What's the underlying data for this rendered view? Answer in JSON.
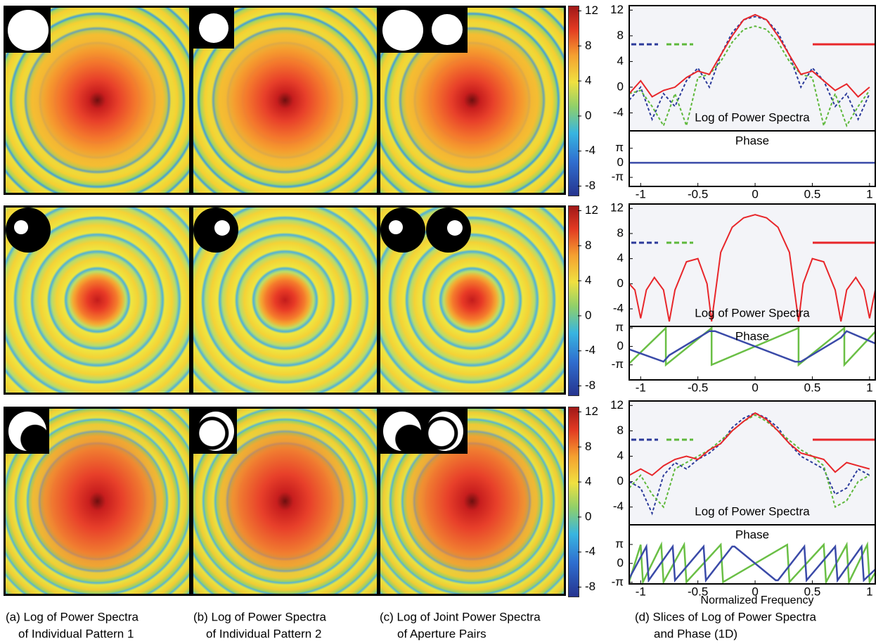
{
  "colorbars": [
    {
      "lim": [
        -9,
        12.6
      ],
      "ticks": [
        12,
        8,
        4,
        0,
        -4,
        -8
      ]
    },
    {
      "lim": [
        -9,
        12.6
      ],
      "ticks": [
        12,
        8,
        4,
        0,
        -4,
        -8
      ]
    },
    {
      "lim": [
        -9,
        12.6
      ],
      "ticks": [
        12,
        8,
        4,
        0,
        -4,
        -8
      ]
    }
  ],
  "slices": [
    {
      "xlim": [
        -1.1,
        1.05
      ],
      "xticks": [
        -1,
        -0.5,
        0,
        0.5,
        1
      ],
      "ylim": [
        -6.8,
        12.7
      ],
      "yticks": [
        12,
        8,
        4,
        0,
        -4
      ],
      "phase_ylim": [
        -5.1,
        6.9
      ],
      "phase_ticks": [
        {
          "value": 3.1416,
          "label": "π"
        },
        0,
        {
          "value": -3.1416,
          "label": "-π"
        }
      ],
      "power_label": "Log of Power Spectra",
      "phase_label": "Phase",
      "power_series": [
        {
          "color": "#2b3a9a",
          "dash": true,
          "x": [
            -1.1,
            -1,
            -0.9,
            -0.8,
            -0.7,
            -0.6,
            -0.5,
            -0.4,
            -0.3,
            -0.2,
            -0.1,
            0,
            0.1,
            0.2,
            0.3,
            0.4,
            0.5,
            0.6,
            0.7,
            0.8,
            0.9,
            1.0
          ],
          "values": [
            -2,
            0,
            -5,
            -1,
            -3,
            1,
            3,
            0,
            5,
            8.5,
            10.5,
            11,
            10.5,
            8.5,
            5,
            0,
            3,
            1,
            -3,
            -1,
            -5,
            -1
          ]
        },
        {
          "color": "#5db83a",
          "dash": true,
          "x": [
            -1.1,
            -1,
            -0.9,
            -0.8,
            -0.7,
            -0.6,
            -0.5,
            -0.4,
            -0.3,
            -0.2,
            -0.1,
            0,
            0.1,
            0.2,
            0.3,
            0.4,
            0.5,
            0.6,
            0.7,
            0.8,
            0.9,
            1.0
          ],
          "values": [
            -1,
            -0.5,
            -3,
            -6,
            -1,
            -6,
            1.5,
            2,
            4,
            7,
            9,
            9.5,
            9,
            7,
            4,
            2,
            1.5,
            -6,
            -1,
            -6,
            -3,
            -0.5
          ]
        },
        {
          "color": "#e8262a",
          "dash": false,
          "x": [
            -1.1,
            -1,
            -0.9,
            -0.8,
            -0.7,
            -0.6,
            -0.5,
            -0.4,
            -0.3,
            -0.2,
            -0.1,
            0,
            0.1,
            0.2,
            0.3,
            0.4,
            0.5,
            0.6,
            0.7,
            0.8,
            0.9,
            1.0
          ],
          "values": [
            -1,
            1,
            -1.5,
            -0.5,
            0,
            1.5,
            2.5,
            2,
            5,
            8,
            10.5,
            11.3,
            10.5,
            8,
            5,
            2,
            2.5,
            1,
            -0.5,
            0.5,
            -1.5,
            0
          ]
        }
      ],
      "phase_series": [
        {
          "color": "#3a4aa8",
          "x": [
            -1.1,
            1.05
          ],
          "values": [
            0,
            0
          ]
        }
      ]
    },
    {
      "xlim": [
        -1.1,
        1.05
      ],
      "xticks": [
        -1,
        -0.5,
        0,
        0.5,
        1
      ],
      "ylim": [
        -6.8,
        12.7
      ],
      "yticks": [
        12,
        8,
        4,
        0,
        -4
      ],
      "phase_ylim": [
        -5.7,
        3.4
      ],
      "phase_ticks": [
        {
          "value": 3.1416,
          "label": "π"
        },
        0,
        {
          "value": -3.1416,
          "label": "-π"
        }
      ],
      "power_label": "Log of Power Spectra",
      "phase_label": "Phase",
      "power_series": [
        {
          "color": "#e8262a",
          "dash": false,
          "x": [
            -1.1,
            -1.05,
            -1.0,
            -0.95,
            -0.88,
            -0.8,
            -0.75,
            -0.7,
            -0.6,
            -0.5,
            -0.42,
            -0.38,
            -0.3,
            -0.2,
            -0.1,
            0,
            0.1,
            0.2,
            0.3,
            0.38,
            0.42,
            0.5,
            0.6,
            0.7,
            0.75,
            0.8,
            0.88,
            0.95,
            1.0,
            1.05
          ],
          "values": [
            0,
            -1,
            -5.5,
            -1,
            1,
            -1,
            -6,
            -1,
            3.5,
            4,
            0,
            -6,
            5,
            9,
            10.5,
            11,
            10.5,
            9,
            5,
            -6,
            0,
            4,
            3.5,
            -1,
            -6,
            -1,
            1,
            -1,
            -5.5,
            -1
          ]
        }
      ],
      "phase_series": [
        {
          "color": "#6abf45",
          "x": [
            -1.1,
            -0.78,
            -0.78,
            -0.38,
            -0.38,
            0.38,
            0.38,
            0.78,
            0.78,
            1.05
          ],
          "values": [
            -2.9,
            3.14,
            -3.14,
            3.14,
            -3.14,
            3.14,
            -3.14,
            3.14,
            -3.14,
            2.5
          ]
        },
        {
          "color": "#3a4aa8",
          "x": [
            -1.1,
            -0.8,
            -0.75,
            -0.4,
            -0.35,
            0.35,
            0.4,
            0.75,
            0.8,
            1.05
          ],
          "values": [
            -0.5,
            -2.6,
            -1.5,
            2.6,
            2.6,
            -2.6,
            -2.6,
            1.5,
            2.6,
            0.5
          ]
        }
      ]
    },
    {
      "xlim": [
        -1.1,
        1.05
      ],
      "xticks": [
        -1,
        -0.5,
        0,
        0.5,
        1
      ],
      "ylim": [
        -6.8,
        12.7
      ],
      "yticks": [
        12,
        8,
        4,
        0,
        -4
      ],
      "phase_ylim": [
        -3.4,
        6.4
      ],
      "phase_ticks": [
        {
          "value": 3.1416,
          "label": "π"
        },
        0,
        {
          "value": -3.1416,
          "label": "-π"
        }
      ],
      "power_label": "Log of Power Spectra",
      "phase_label": "Phase",
      "xlabel": "Normalized Frequency",
      "power_series": [
        {
          "color": "#2b3a9a",
          "dash": true,
          "x": [
            -1.1,
            -1,
            -0.9,
            -0.8,
            -0.7,
            -0.6,
            -0.5,
            -0.4,
            -0.3,
            -0.2,
            -0.1,
            0,
            0.1,
            0.2,
            0.3,
            0.4,
            0.5,
            0.6,
            0.7,
            0.8,
            0.9,
            1.0
          ],
          "values": [
            0,
            -1,
            -5,
            1,
            3,
            2,
            3.5,
            4.5,
            6,
            8.5,
            10,
            10.8,
            10,
            8.5,
            6,
            4,
            3,
            2,
            -2,
            -1,
            2,
            1
          ]
        },
        {
          "color": "#5db83a",
          "dash": true,
          "x": [
            -1.1,
            -1,
            -0.9,
            -0.8,
            -0.7,
            -0.6,
            -0.5,
            -0.4,
            -0.3,
            -0.2,
            -0.1,
            0,
            0.1,
            0.2,
            0.3,
            0.4,
            0.5,
            0.6,
            0.7,
            0.8,
            0.9,
            1.0
          ],
          "values": [
            -1,
            1,
            -2,
            -4,
            2,
            3,
            4,
            5,
            6.5,
            8,
            9.5,
            10.5,
            9.5,
            8,
            6.5,
            5,
            4,
            2.5,
            -4,
            -3,
            0,
            1
          ]
        },
        {
          "color": "#e8262a",
          "dash": false,
          "x": [
            -1.1,
            -1,
            -0.9,
            -0.8,
            -0.7,
            -0.6,
            -0.5,
            -0.4,
            -0.3,
            -0.2,
            -0.1,
            0,
            0.1,
            0.2,
            0.3,
            0.4,
            0.5,
            0.6,
            0.7,
            0.8,
            0.9,
            1.0
          ],
          "values": [
            1,
            2,
            1,
            2.5,
            3.5,
            4,
            3.5,
            5,
            6,
            8,
            9.5,
            10.8,
            9.8,
            8,
            6,
            4.5,
            4,
            3.5,
            1.5,
            3,
            2.5,
            2
          ]
        }
      ],
      "phase_series": [
        {
          "color": "#6abf45",
          "x": [
            -1.1,
            -1.0,
            -0.98,
            -0.82,
            -0.8,
            -0.62,
            -0.6,
            -0.3,
            -0.28,
            0.28,
            0.3,
            0.6,
            0.62,
            0.8,
            0.82,
            0.98,
            1.0,
            1.05
          ],
          "values": [
            -3,
            3.1,
            -3.1,
            3.1,
            -3.1,
            3.1,
            -3.1,
            3.1,
            -3.1,
            3.1,
            -3.1,
            3.1,
            -3.1,
            3.1,
            -3.1,
            3.1,
            -3.1,
            -1.5
          ]
        },
        {
          "color": "#3a4aa8",
          "x": [
            -1.1,
            -0.95,
            -0.93,
            -0.72,
            -0.7,
            -0.45,
            -0.43,
            -0.2,
            -0.18,
            0.18,
            0.2,
            0.43,
            0.45,
            0.7,
            0.72,
            0.93,
            0.95,
            1.05
          ],
          "values": [
            -2.5,
            2.8,
            -2.8,
            2.8,
            -2.8,
            2.8,
            -2.8,
            2.8,
            2.8,
            -2.8,
            -2.8,
            2.8,
            -2.8,
            2.8,
            -2.8,
            2.8,
            -2.8,
            -1
          ]
        }
      ]
    }
  ],
  "captions": [
    {
      "lines": [
        "(a) Log of Power Spectra",
        "of Individual Pattern 1"
      ]
    },
    {
      "lines": [
        "(b) Log of Power Spectra",
        "of Individual Pattern 2"
      ]
    },
    {
      "lines": [
        "(c) Log of Joint Power Spectra",
        "of Aperture Pairs"
      ]
    },
    {
      "lines": [
        "(d) Slices of Log of Power Spectra",
        "and Phase (1D)"
      ]
    }
  ]
}
